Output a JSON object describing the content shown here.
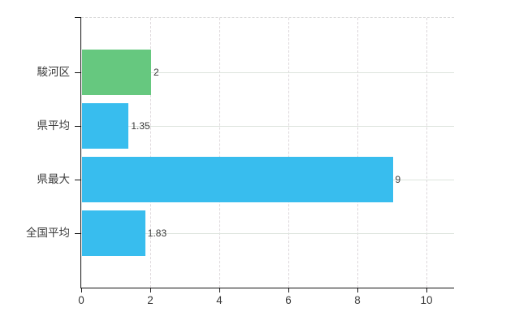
{
  "chart_data": {
    "type": "bar",
    "orientation": "horizontal",
    "title": "",
    "xlabel": "",
    "ylabel": "",
    "categories": [
      "駿河区",
      "県平均",
      "県最大",
      "全国平均"
    ],
    "values": [
      2,
      1.35,
      9,
      1.83
    ],
    "value_labels": [
      "2",
      "1.35",
      "9",
      "1.83"
    ],
    "bar_colors": [
      "#66c87f",
      "#38bdee",
      "#38bdee",
      "#38bdee"
    ],
    "bar_patterns": [
      "dots",
      "",
      "",
      ""
    ],
    "x_ticks": [
      0,
      2,
      4,
      6,
      8,
      10
    ],
    "x_tick_labels": [
      "0",
      "2",
      "4",
      "6",
      "8",
      "10"
    ],
    "xlim": [
      0,
      10.8
    ],
    "grid": true,
    "legend": false
  },
  "layout_colors": {
    "background": "#ffffff",
    "axis": "#141414",
    "grid_vertical": "#dcd6da",
    "grid_horizontal": "#dde4dd",
    "top_border": "#d9d9d9",
    "text": "#3c3c3c"
  }
}
